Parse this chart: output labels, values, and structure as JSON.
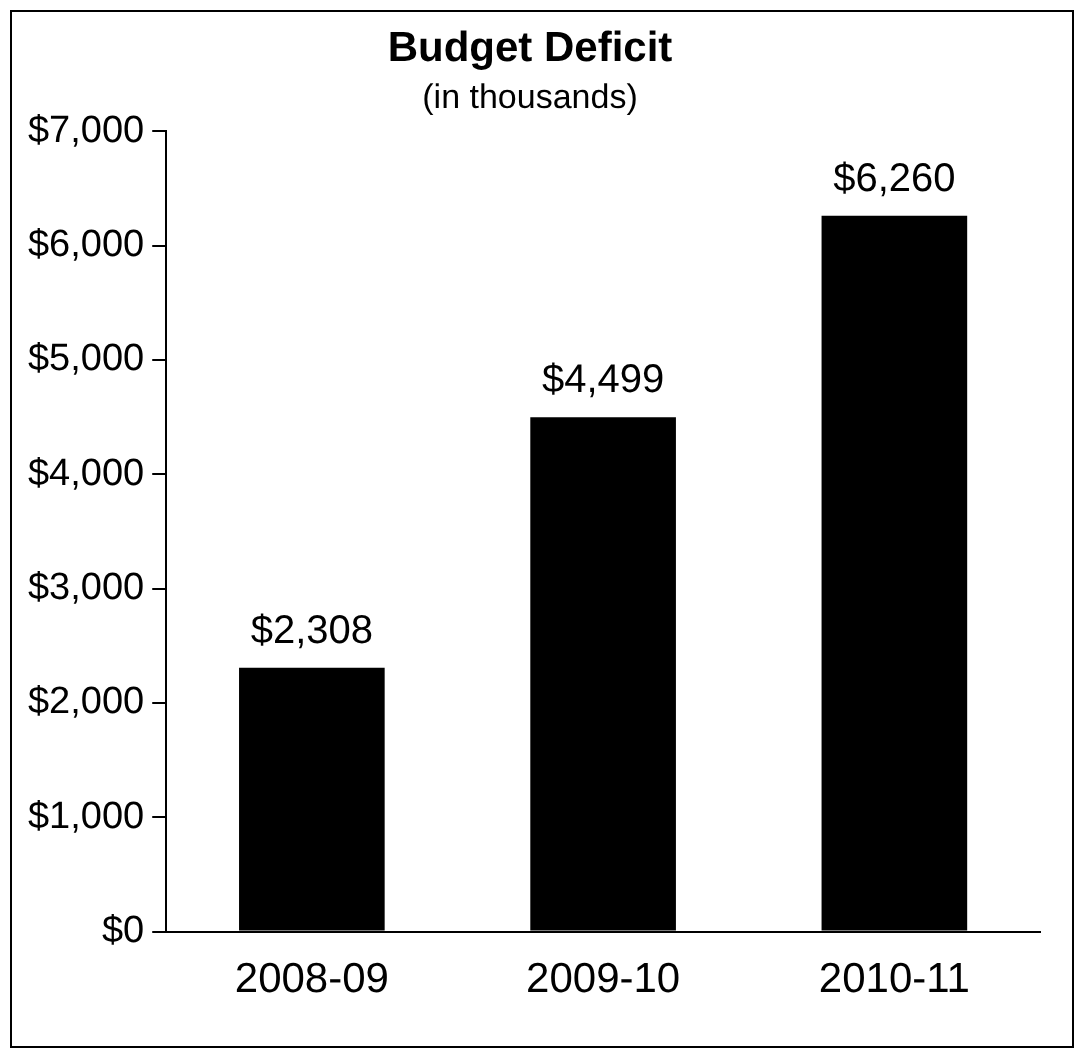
{
  "chart_data": {
    "type": "bar",
    "title": "Budget Deficit",
    "subtitle": "(in thousands)",
    "categories": [
      "2008-09",
      "2009-10",
      "2010-11"
    ],
    "values": [
      2308,
      4499,
      6260
    ],
    "value_labels": [
      "$2,308",
      "$4,499",
      "$6,260"
    ],
    "color": "#000000",
    "ylim": [
      0,
      7000
    ],
    "yticks": [
      {
        "value": 0,
        "label": "$0"
      },
      {
        "value": 1000,
        "label": "$1,000"
      },
      {
        "value": 2000,
        "label": "$2,000"
      },
      {
        "value": 3000,
        "label": "$3,000"
      },
      {
        "value": 4000,
        "label": "$4,000"
      },
      {
        "value": 5000,
        "label": "$5,000"
      },
      {
        "value": 6000,
        "label": "$6,000"
      },
      {
        "value": 7000,
        "label": "$7,000"
      }
    ],
    "grid": false,
    "legend": false
  }
}
